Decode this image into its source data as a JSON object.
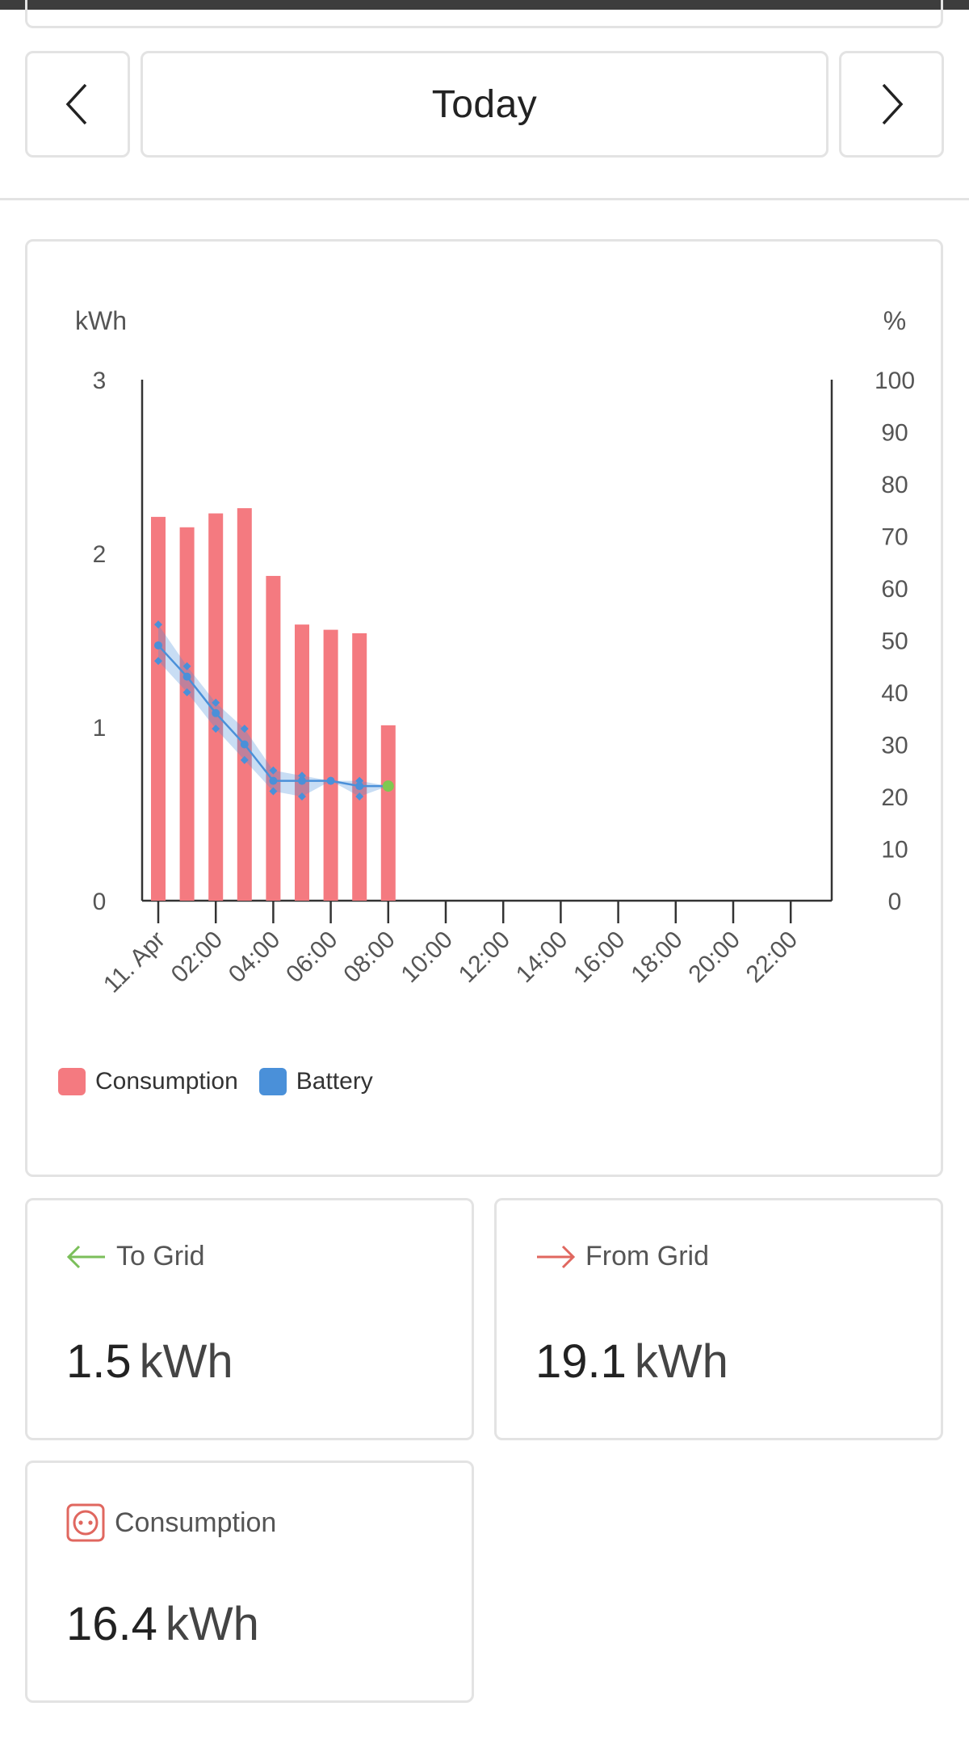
{
  "date_nav": {
    "label": "Today",
    "prev_icon": "chevron-left-icon",
    "next_icon": "chevron-right-icon"
  },
  "chart_data": {
    "type": "bar",
    "title": "",
    "y_left_label": "kWh",
    "y_right_label": "%",
    "y_left_ticks": [
      "3",
      "2",
      "1",
      "0"
    ],
    "y_right_ticks": [
      "100",
      "90",
      "80",
      "70",
      "60",
      "50",
      "40",
      "30",
      "20",
      "10",
      "0"
    ],
    "ylim_left": [
      0,
      3
    ],
    "ylim_right": [
      0,
      100
    ],
    "x_tick_labels": [
      "11. Apr",
      "02:00",
      "04:00",
      "06:00",
      "08:00",
      "10:00",
      "12:00",
      "14:00",
      "16:00",
      "18:00",
      "20:00",
      "22:00"
    ],
    "x_tick_hours": [
      0,
      2,
      4,
      6,
      8,
      10,
      12,
      14,
      16,
      18,
      20,
      22
    ],
    "legend_position": "bottom-left",
    "series": [
      {
        "name": "Consumption",
        "type": "bar",
        "axis": "left",
        "color": "#f47a80",
        "hours": [
          0,
          1,
          2,
          3,
          4,
          5,
          6,
          7,
          8
        ],
        "values": [
          2.21,
          2.15,
          2.23,
          2.26,
          1.87,
          1.59,
          1.56,
          1.54,
          1.01
        ]
      },
      {
        "name": "Battery",
        "type": "line",
        "axis": "right",
        "color": "#4a90d9",
        "hours": [
          0,
          1,
          2,
          3,
          4,
          5,
          6,
          7,
          8
        ],
        "values": [
          49,
          43,
          36,
          30,
          23,
          23,
          23,
          22,
          22
        ],
        "min": [
          46,
          40,
          33,
          27,
          21,
          20,
          23,
          20,
          22
        ],
        "max": [
          53,
          45,
          38,
          33,
          25,
          24,
          23,
          23,
          22
        ]
      }
    ]
  },
  "stats": {
    "to_grid": {
      "label": "To Grid",
      "value": "1.5",
      "unit": "kWh",
      "icon": "arrow-left-icon",
      "color": "#7bbf5a"
    },
    "from_grid": {
      "label": "From Grid",
      "value": "19.1",
      "unit": "kWh",
      "icon": "arrow-right-icon",
      "color": "#e0675f"
    },
    "consumption": {
      "label": "Consumption",
      "value": "16.4",
      "unit": "kWh",
      "icon": "power-socket-icon",
      "color": "#e0675f"
    }
  }
}
